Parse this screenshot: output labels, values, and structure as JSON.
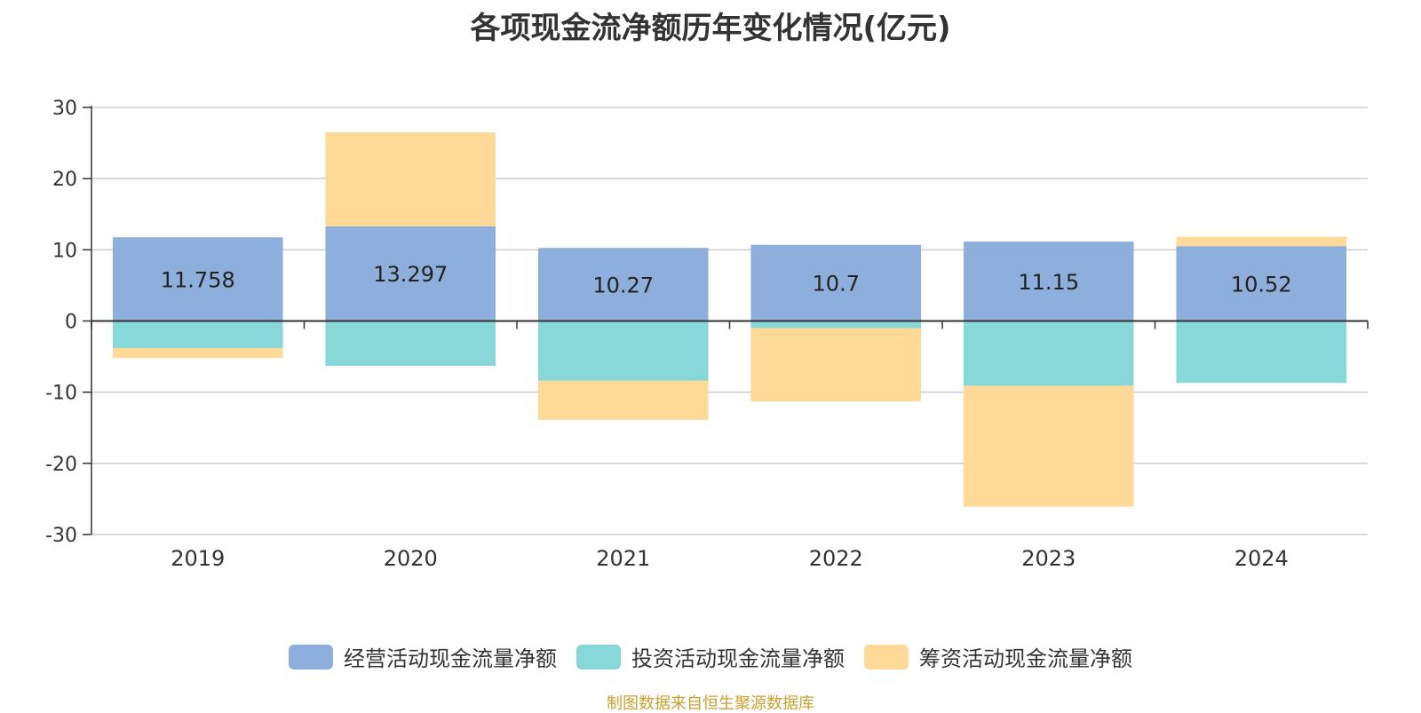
{
  "source_note": "制图数据来自恒生聚源数据库",
  "chart_data": {
    "type": "bar",
    "stacked": true,
    "title": "各项现金流净额历年变化情况(亿元)",
    "categories": [
      "2019",
      "2020",
      "2021",
      "2022",
      "2023",
      "2024"
    ],
    "ylim": [
      -30,
      30
    ],
    "yticks": [
      "30",
      "20",
      "10",
      "0",
      "-10",
      "-20",
      "-30"
    ],
    "ytick_values": [
      30,
      20,
      10,
      0,
      -10,
      -20,
      -30
    ],
    "grid": true,
    "legend_position": "bottom",
    "series": [
      {
        "name": "经营活动现金流量净额",
        "color": "#8eaedb",
        "values": [
          11.758,
          13.297,
          10.27,
          10.7,
          11.15,
          10.52
        ],
        "labels": [
          "11.758",
          "13.297",
          "10.27",
          "10.7",
          "11.15",
          "10.52"
        ]
      },
      {
        "name": "投资活动现金流量净额",
        "color": "#88d7d9",
        "values": [
          -3.8,
          -6.3,
          -8.4,
          -1.0,
          -9.1,
          -8.7
        ]
      },
      {
        "name": "筹资活动现金流量净额",
        "color": "#ffd997",
        "values": [
          -1.4,
          13.2,
          -5.5,
          -10.3,
          -17.0,
          1.3
        ]
      }
    ]
  }
}
